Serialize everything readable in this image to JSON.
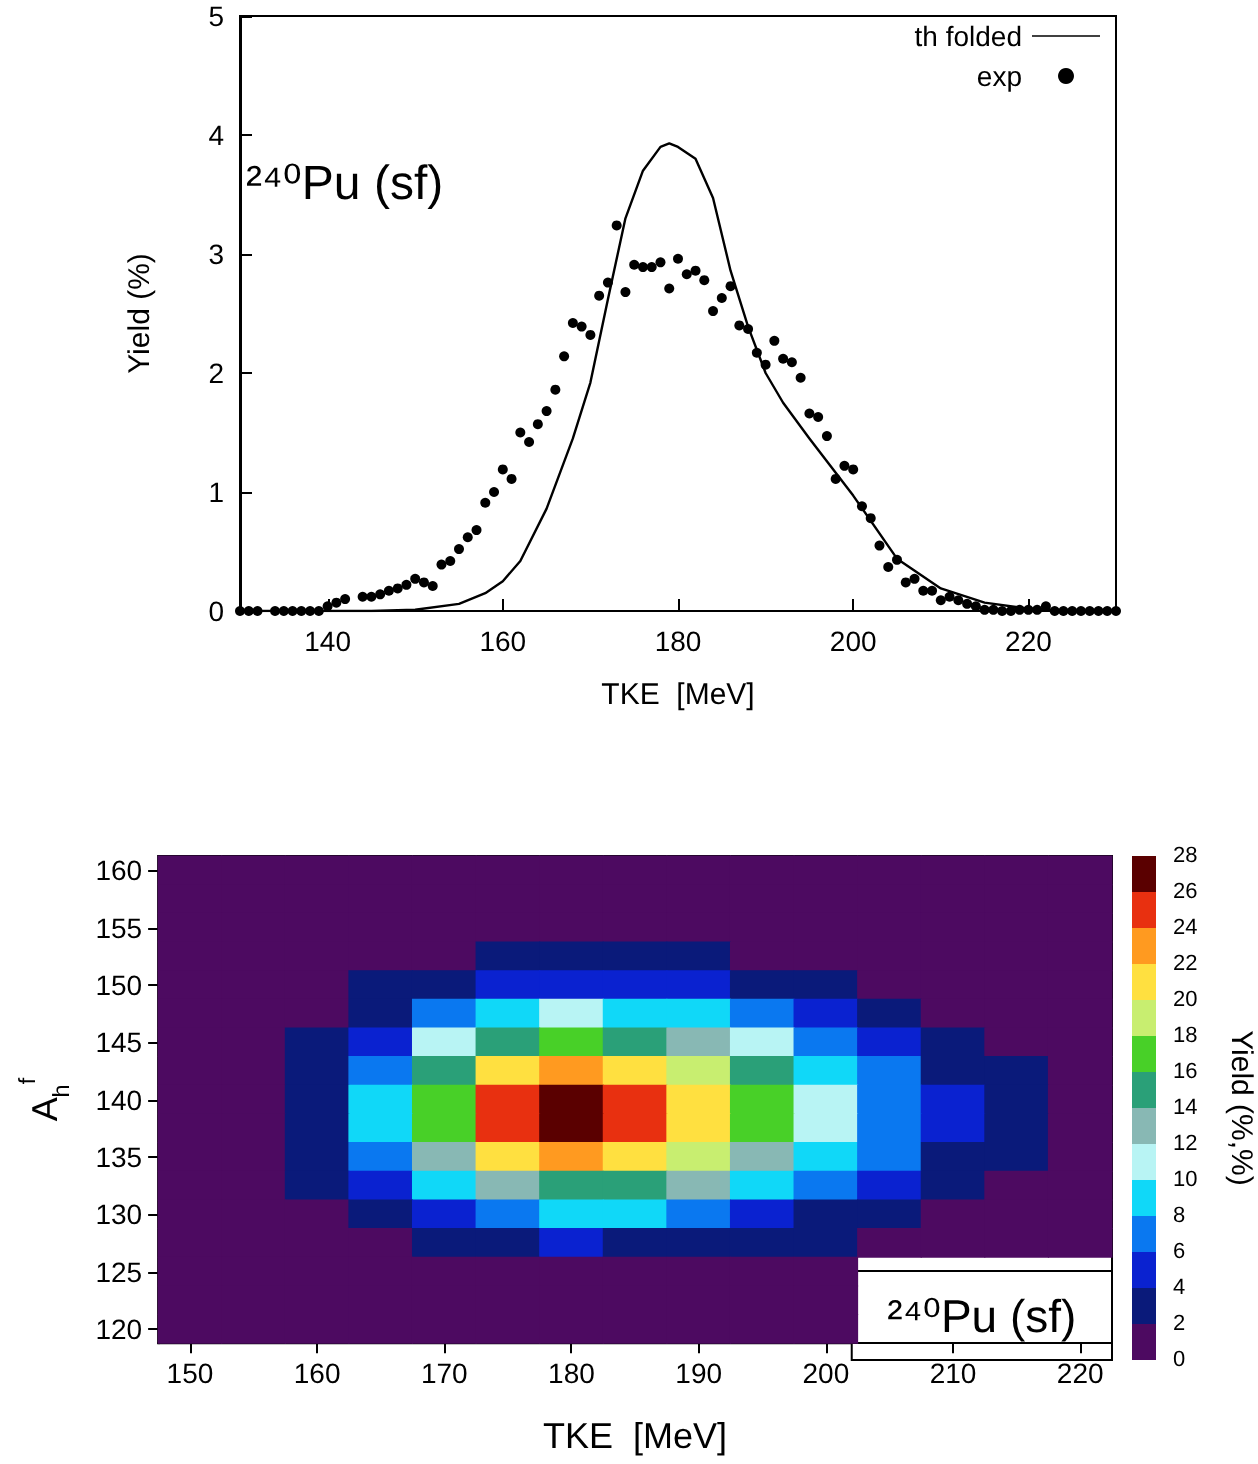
{
  "chart_data": [
    {
      "type": "line",
      "xlabel": "TKE  [MeV]",
      "ylabel": "Yield (%)",
      "annotations": [
        "²⁴⁰Pu (sf)"
      ],
      "xlim": [
        130,
        230
      ],
      "xticks": [
        140,
        160,
        180,
        200,
        220
      ],
      "ylim": [
        0,
        5
      ],
      "yticks": [
        0,
        1,
        2,
        3,
        4,
        5
      ],
      "grid": false,
      "legend": "top right",
      "series": [
        {
          "name": "th folded",
          "type": "line",
          "color": "#000000",
          "marker": "none",
          "line_style": "solid",
          "x": [
            130,
            140,
            145,
            150,
            155,
            158,
            160,
            162,
            165,
            168,
            170,
            172,
            174,
            176,
            178,
            179,
            180,
            182,
            184,
            186,
            188,
            190,
            192,
            195,
            200,
            205,
            210,
            215,
            220,
            225,
            230
          ],
          "values": [
            0,
            0,
            0,
            0.01,
            0.06,
            0.15,
            0.25,
            0.42,
            0.86,
            1.45,
            1.92,
            2.62,
            3.3,
            3.7,
            3.9,
            3.93,
            3.9,
            3.8,
            3.47,
            2.86,
            2.39,
            2.0,
            1.75,
            1.45,
            0.97,
            0.44,
            0.19,
            0.07,
            0.02,
            0,
            0
          ]
        },
        {
          "name": "exp",
          "type": "scatter",
          "color": "#000000",
          "marker": "circle",
          "x": [
            130,
            131,
            132,
            134,
            135,
            136,
            137,
            138,
            139,
            140,
            141,
            142,
            144,
            145,
            146,
            147,
            148,
            149,
            150,
            151,
            152,
            153,
            154,
            155,
            156,
            157,
            158,
            159,
            160,
            161,
            162,
            163,
            164,
            165,
            166,
            167,
            168,
            169,
            170,
            171,
            172,
            173,
            174,
            175,
            176,
            177,
            178,
            179,
            180,
            181,
            182,
            183,
            184,
            185,
            186,
            187,
            188,
            189,
            190,
            191,
            192,
            193,
            194,
            195,
            196,
            197,
            198,
            199,
            200,
            201,
            202,
            203,
            204,
            205,
            206,
            207,
            208,
            209,
            210,
            211,
            212,
            213,
            214,
            215,
            216,
            217,
            218,
            219,
            220,
            221,
            222,
            223,
            224,
            225,
            226,
            227,
            228,
            229,
            230
          ],
          "values": [
            0,
            0,
            0,
            0,
            0,
            0,
            0,
            0,
            0,
            0.04,
            0.07,
            0.1,
            0.12,
            0.12,
            0.14,
            0.17,
            0.19,
            0.22,
            0.27,
            0.24,
            0.21,
            0.39,
            0.42,
            0.52,
            0.62,
            0.68,
            0.91,
            1.0,
            1.19,
            1.11,
            1.5,
            1.42,
            1.57,
            1.68,
            1.86,
            2.14,
            2.42,
            2.39,
            2.32,
            2.65,
            2.76,
            3.24,
            2.68,
            2.91,
            2.89,
            2.89,
            2.93,
            2.71,
            2.96,
            2.83,
            2.86,
            2.78,
            2.52,
            2.63,
            2.73,
            2.4,
            2.37,
            2.17,
            2.07,
            2.27,
            2.12,
            2.09,
            1.96,
            1.66,
            1.63,
            1.47,
            1.11,
            1.22,
            1.19,
            0.88,
            0.78,
            0.55,
            0.37,
            0.43,
            0.24,
            0.27,
            0.17,
            0.17,
            0.09,
            0.12,
            0.09,
            0.06,
            0.04,
            0.01,
            0.01,
            0,
            0,
            0.01,
            0.01,
            0.01,
            0.04,
            0,
            0,
            0,
            0,
            0,
            0,
            0,
            0
          ]
        }
      ]
    },
    {
      "type": "heatmap",
      "xlabel": "TKE  [MeV]",
      "ylabel": "A$_{h}$$^{f}$",
      "clabel": "Yield (%,%)",
      "annotations": [
        "²⁴⁰Pu (sf)"
      ],
      "clim": [
        0,
        28
      ],
      "cticks": [
        0,
        2,
        4,
        6,
        8,
        10,
        12,
        14,
        16,
        18,
        20,
        22,
        24,
        26,
        28
      ],
      "categories": [
        "150",
        null,
        "160",
        null,
        "170",
        null,
        "180",
        null,
        "190",
        null,
        "200",
        null,
        "210",
        null,
        "220"
      ],
      "y_categories": [
        "160",
        null,
        "155",
        null,
        "150",
        null,
        "145",
        null,
        "140",
        null,
        "135",
        null,
        "130",
        null,
        "125",
        null,
        "120"
      ],
      "cells": [
        [
          0,
          0,
          0,
          0,
          0,
          0,
          0,
          0,
          0,
          0,
          0,
          0,
          0,
          0,
          0
        ],
        [
          0,
          0,
          0,
          0,
          0,
          0,
          0,
          0,
          0,
          0,
          0,
          0,
          0,
          0,
          0
        ],
        [
          0,
          0,
          0,
          0,
          1,
          1,
          1,
          1,
          1,
          1,
          0,
          0,
          0,
          0,
          0
        ],
        [
          0,
          0,
          0,
          1,
          1,
          2,
          2,
          2,
          2,
          1,
          1,
          1,
          0,
          0,
          0
        ],
        [
          0,
          0,
          1,
          2,
          3,
          5,
          5,
          5,
          4,
          3,
          2,
          1,
          1,
          0,
          0
        ],
        [
          0,
          0,
          1,
          3,
          6,
          9,
          10,
          9,
          8,
          6,
          4,
          3,
          1,
          1,
          0
        ],
        [
          0,
          1,
          2,
          5,
          10,
          14,
          16,
          15,
          13,
          10,
          7,
          4,
          2,
          1,
          1
        ],
        [
          0,
          1,
          3,
          7,
          14,
          20,
          22,
          21,
          18,
          14,
          9,
          6,
          3,
          2,
          1
        ],
        [
          0,
          1,
          3,
          8,
          16,
          24,
          26,
          25,
          21,
          16,
          11,
          7,
          4,
          2,
          1
        ],
        [
          0,
          1,
          3,
          8,
          16,
          24,
          27,
          25,
          21,
          16,
          11,
          7,
          4,
          2,
          1
        ],
        [
          0,
          1,
          3,
          7,
          13,
          20,
          22,
          21,
          18,
          13,
          9,
          6,
          3,
          2,
          1
        ],
        [
          0,
          1,
          2,
          5,
          9,
          13,
          15,
          14,
          12,
          9,
          6,
          4,
          2,
          1,
          1
        ],
        [
          0,
          0,
          1,
          3,
          5,
          7,
          8,
          8,
          7,
          5,
          3,
          2,
          1,
          1,
          0
        ],
        [
          0,
          0,
          0,
          1,
          2,
          3,
          4,
          3,
          3,
          2,
          2,
          1,
          1,
          0,
          0
        ],
        [
          0,
          0,
          0,
          0,
          1,
          1,
          1,
          1,
          1,
          1,
          1,
          null,
          null,
          null,
          null
        ],
        [
          0,
          0,
          0,
          0,
          0,
          0,
          0,
          0,
          0,
          0,
          0,
          null,
          null,
          null,
          null
        ],
        [
          0,
          0,
          0,
          0,
          0,
          0,
          0,
          0,
          0,
          0,
          0,
          null,
          null,
          null,
          null
        ]
      ]
    }
  ]
}
